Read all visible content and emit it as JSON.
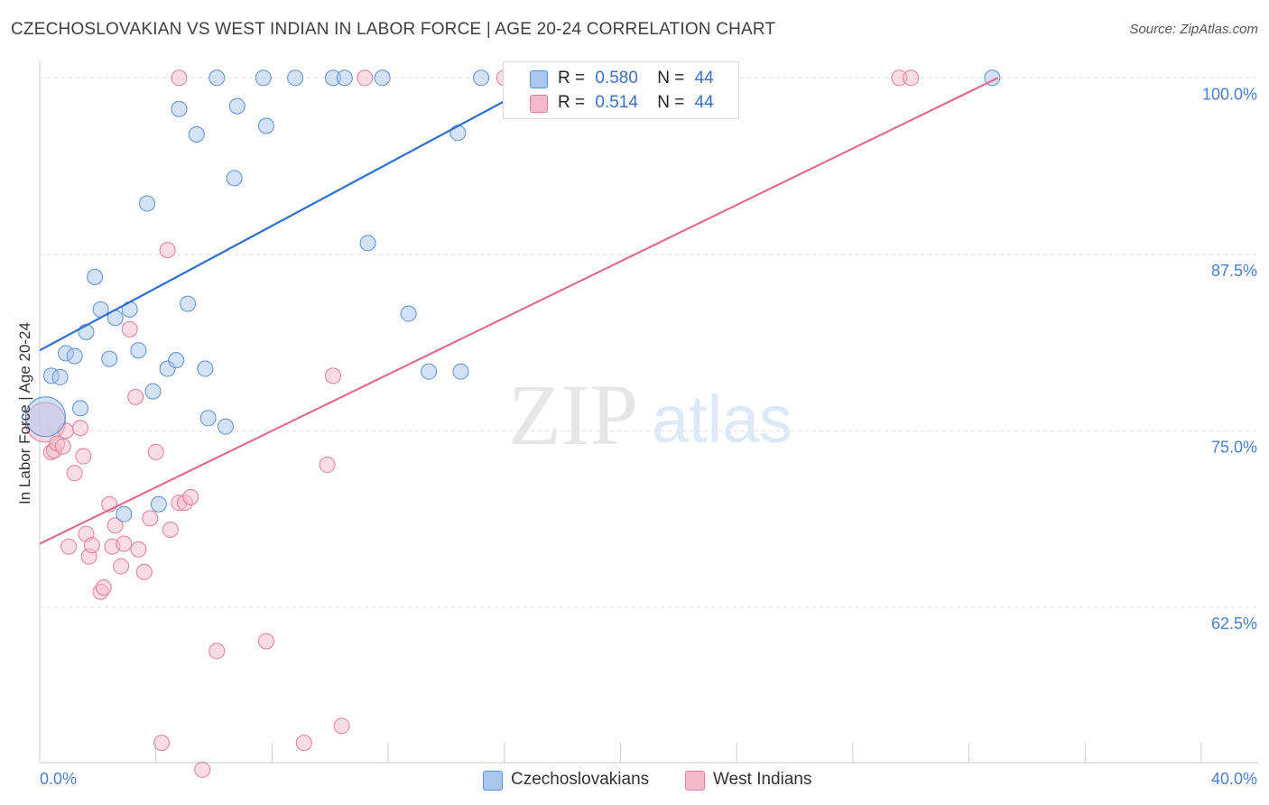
{
  "title": "CZECHOSLOVAKIAN VS WEST INDIAN IN LABOR FORCE | AGE 20-24 CORRELATION CHART",
  "source": "Source: ZipAtlas.com",
  "watermark": {
    "zip": "ZIP",
    "atlas": "atlas"
  },
  "colors": {
    "blue_fill": "#aac6ee",
    "blue_stroke": "#5b8fd6",
    "blue_line": "#2e6fcb",
    "pink_fill": "#f6b9cb",
    "pink_stroke": "#e27d9e",
    "pink_line": "#e06a92",
    "grid": "#dddddd",
    "tick_text": "#4a7fd0"
  },
  "legend": {
    "rows": [
      {
        "r_label": "R =",
        "r_value": "0.580",
        "n_label": "N =",
        "n_value": "44"
      },
      {
        "r_label": "R =",
        "r_value": "0.514",
        "n_label": "N =",
        "n_value": "44"
      }
    ]
  },
  "bottom_legend": [
    "Czechoslovakians",
    "West Indians"
  ],
  "chart_data": {
    "type": "scatter",
    "xlabel": "",
    "ylabel": "In Labor Force | Age 20-24",
    "xlim": [
      0,
      40
    ],
    "ylim": [
      51.5,
      102
    ],
    "x_tick_labels": [
      {
        "value": 0,
        "label": "0.0%"
      },
      {
        "value": 40,
        "label": "40.0%"
      }
    ],
    "y_tick_labels": [
      {
        "value": 100,
        "label": "100.0%"
      },
      {
        "value": 87.5,
        "label": "87.5%"
      },
      {
        "value": 75,
        "label": "75.0%"
      },
      {
        "value": 62.5,
        "label": "62.5%"
      }
    ],
    "grid": true,
    "legend_position": "top-center",
    "series": [
      {
        "name": "Czechoslovakians",
        "trend": [
          [
            0,
            80.7
          ],
          [
            17.5,
            100.0
          ]
        ],
        "points": [
          [
            0.2,
            76.0,
            "large"
          ],
          [
            0.4,
            78.9
          ],
          [
            0.7,
            78.8
          ],
          [
            0.9,
            80.5
          ],
          [
            1.2,
            80.3
          ],
          [
            1.4,
            76.6
          ],
          [
            1.6,
            82.0
          ],
          [
            1.9,
            85.9
          ],
          [
            2.1,
            83.6
          ],
          [
            2.4,
            80.1
          ],
          [
            2.6,
            83.0
          ],
          [
            2.9,
            69.1
          ],
          [
            3.1,
            83.6
          ],
          [
            3.4,
            80.7
          ],
          [
            3.7,
            91.1
          ],
          [
            3.9,
            77.8
          ],
          [
            4.1,
            69.8
          ],
          [
            4.4,
            79.4
          ],
          [
            4.7,
            80.0
          ],
          [
            4.8,
            97.8
          ],
          [
            5.1,
            84.0
          ],
          [
            5.4,
            96.0
          ],
          [
            5.7,
            79.4
          ],
          [
            5.8,
            75.9
          ],
          [
            6.1,
            100.0
          ],
          [
            6.4,
            75.3
          ],
          [
            6.7,
            92.9
          ],
          [
            6.8,
            98.0
          ],
          [
            7.7,
            100.0
          ],
          [
            7.8,
            96.6
          ],
          [
            8.8,
            100.0
          ],
          [
            10.1,
            100.0
          ],
          [
            10.5,
            100.0
          ],
          [
            11.3,
            88.3
          ],
          [
            11.8,
            100.0
          ],
          [
            12.7,
            83.3
          ],
          [
            13.4,
            79.2
          ],
          [
            14.4,
            96.1
          ],
          [
            14.5,
            79.2
          ],
          [
            15.2,
            100.0
          ],
          [
            16.4,
            100.0
          ],
          [
            17.0,
            100.0
          ],
          [
            17.4,
            100.0
          ],
          [
            32.8,
            100.0
          ]
        ]
      },
      {
        "name": "West Indians",
        "trend": [
          [
            0,
            67.0
          ],
          [
            33.0,
            100.0
          ]
        ],
        "points": [
          [
            0.2,
            75.6,
            "large"
          ],
          [
            0.4,
            73.5
          ],
          [
            0.5,
            73.6
          ],
          [
            0.6,
            74.1
          ],
          [
            0.8,
            73.9
          ],
          [
            0.9,
            75.0
          ],
          [
            1.0,
            66.8
          ],
          [
            1.2,
            72.0
          ],
          [
            1.4,
            75.2
          ],
          [
            1.5,
            73.2
          ],
          [
            1.6,
            67.7
          ],
          [
            1.7,
            66.1
          ],
          [
            1.8,
            66.9
          ],
          [
            2.1,
            63.6
          ],
          [
            2.2,
            63.9
          ],
          [
            2.4,
            69.8
          ],
          [
            2.5,
            66.8
          ],
          [
            2.6,
            68.3
          ],
          [
            2.8,
            65.4
          ],
          [
            2.9,
            67.0
          ],
          [
            3.1,
            82.2
          ],
          [
            3.3,
            77.4
          ],
          [
            3.4,
            66.6
          ],
          [
            3.6,
            65.0
          ],
          [
            3.8,
            68.8
          ],
          [
            4.0,
            73.5
          ],
          [
            4.2,
            52.9
          ],
          [
            4.4,
            87.8
          ],
          [
            4.5,
            68.0
          ],
          [
            4.8,
            100.0
          ],
          [
            4.8,
            69.9
          ],
          [
            5.0,
            69.9
          ],
          [
            5.2,
            70.3
          ],
          [
            5.6,
            51.0
          ],
          [
            6.1,
            59.4
          ],
          [
            7.8,
            60.1
          ],
          [
            9.1,
            52.9
          ],
          [
            9.9,
            72.6
          ],
          [
            10.1,
            78.9
          ],
          [
            10.4,
            54.1
          ],
          [
            11.2,
            100.0
          ],
          [
            16.0,
            100.0
          ],
          [
            29.6,
            100.0
          ],
          [
            30.0,
            100.0
          ]
        ]
      }
    ]
  }
}
